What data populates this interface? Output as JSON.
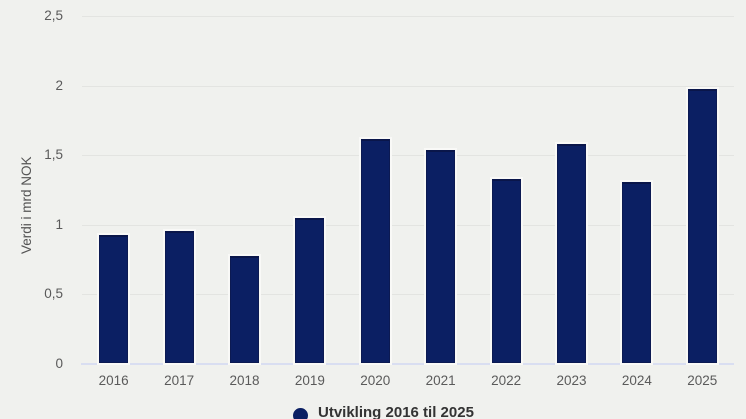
{
  "chart_data": {
    "type": "bar",
    "title": "",
    "xlabel": "",
    "ylabel": "Verdi i mrd NOK",
    "categories": [
      "2016",
      "2017",
      "2018",
      "2019",
      "2020",
      "2021",
      "2022",
      "2023",
      "2024",
      "2025"
    ],
    "values": [
      0.92,
      0.95,
      0.77,
      1.04,
      1.61,
      1.53,
      1.32,
      1.57,
      1.3,
      1.97
    ],
    "series": [
      {
        "name": "Utvikling 2016 til 2025",
        "values": [
          0.92,
          0.95,
          0.77,
          1.04,
          1.61,
          1.53,
          1.32,
          1.57,
          1.3,
          1.97
        ]
      }
    ],
    "ylim": [
      0,
      2.5
    ],
    "yticks": [
      {
        "value": 2.5,
        "label": "2,5"
      },
      {
        "value": 2,
        "label": "2"
      },
      {
        "value": 1.5,
        "label": "1,5"
      },
      {
        "value": 1,
        "label": "1"
      },
      {
        "value": 0.5,
        "label": "0,5"
      },
      {
        "value": 0,
        "label": "0"
      }
    ],
    "grid": true,
    "legend_position": "bottom",
    "legend": [
      {
        "label": "Utvikling 2016 til 2025",
        "color": "#0b1f63"
      }
    ]
  },
  "colors": {
    "background": "#f0f1ee",
    "bar": "#0b1f63",
    "gridline": "#e3e4e1",
    "axisline": "#d9def1",
    "tick_text": "#5a5a5a",
    "legend_text": "#333333"
  }
}
